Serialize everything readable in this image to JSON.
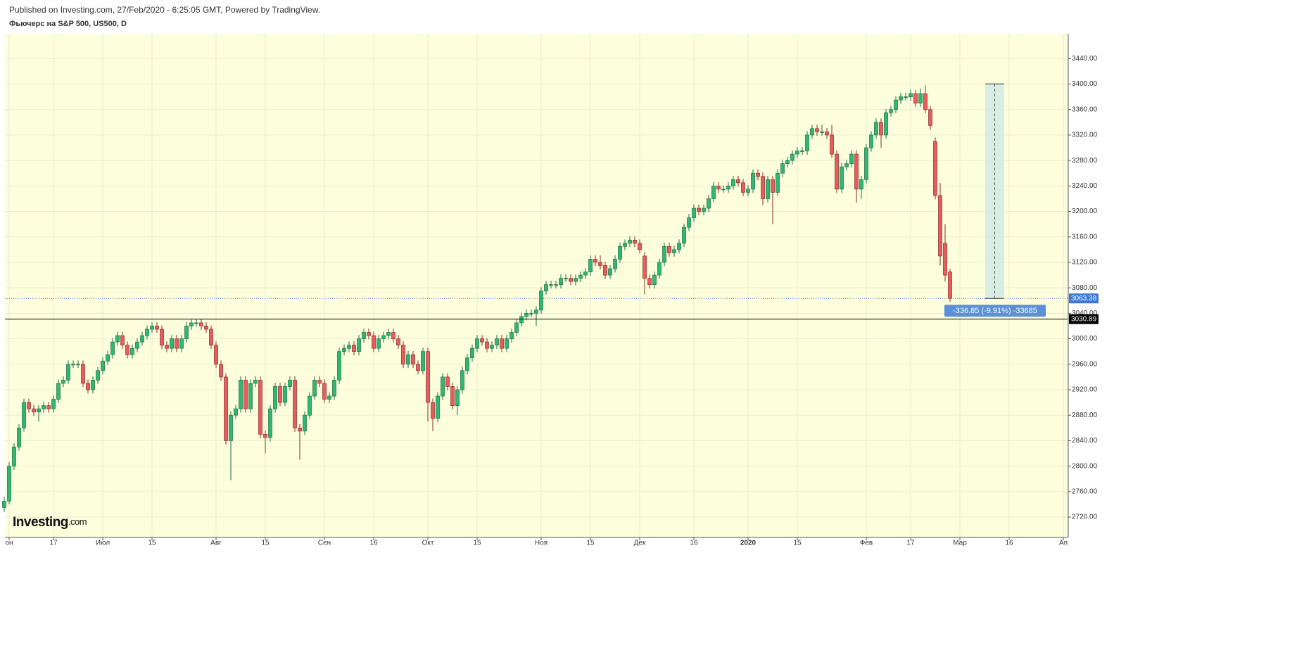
{
  "chart_data": {
    "type": "candlestick",
    "subtitle": "Published on Investing.com, 27/Feb/2020 - 6:25:05 GMT, Powered by TradingView.",
    "title": "Фьючерс на S&P 500, US500, D",
    "logo": {
      "name": "Investing",
      "suffix": ".com"
    },
    "up_color": "#2eb872",
    "down_color": "#e85c5c",
    "ylim": [
      2688,
      3479
    ],
    "yticks": [
      {
        "value": 2720,
        "label": "2720.00"
      },
      {
        "value": 2760,
        "label": "2760.00"
      },
      {
        "value": 2800,
        "label": "2800.00"
      },
      {
        "value": 2840,
        "label": "2840.00"
      },
      {
        "value": 2880,
        "label": "2880.00"
      },
      {
        "value": 2920,
        "label": "2920.00"
      },
      {
        "value": 2960,
        "label": "2960.00"
      },
      {
        "value": 3000,
        "label": "3000.00"
      },
      {
        "value": 3040,
        "label": "3040.00"
      },
      {
        "value": 3080,
        "label": "3080.00"
      },
      {
        "value": 3120,
        "label": "3120.00"
      },
      {
        "value": 3160,
        "label": "3160.00"
      },
      {
        "value": 3200,
        "label": "3200.00"
      },
      {
        "value": 3240,
        "label": "3240.00"
      },
      {
        "value": 3280,
        "label": "3280.00"
      },
      {
        "value": 3320,
        "label": "3320.00"
      },
      {
        "value": 3360,
        "label": "3360.00"
      },
      {
        "value": 3400,
        "label": "3400.00"
      },
      {
        "value": 3440,
        "label": "3440.00"
      }
    ],
    "grid": true,
    "last_price": 3063.38,
    "hline": 3030.89,
    "measure": {
      "range": [
        3400.23,
        3063.38
      ],
      "label": "-336.85 (-9.91%) -33685"
    },
    "categories": [
      null,
      "он",
      null,
      null,
      null,
      null,
      null,
      null,
      null,
      null,
      "17",
      null,
      null,
      null,
      null,
      null,
      null,
      null,
      null,
      null,
      "Июл",
      null,
      null,
      null,
      null,
      null,
      null,
      null,
      null,
      null,
      "15",
      null,
      null,
      null,
      null,
      null,
      null,
      null,
      null,
      null,
      null,
      null,
      null,
      "Авг",
      null,
      null,
      null,
      null,
      null,
      null,
      null,
      null,
      null,
      "15",
      null,
      null,
      null,
      null,
      null,
      null,
      null,
      null,
      null,
      null,
      null,
      "Сен",
      null,
      null,
      null,
      null,
      null,
      null,
      null,
      null,
      null,
      "16",
      null,
      null,
      null,
      null,
      null,
      null,
      null,
      null,
      null,
      null,
      "Окт",
      null,
      null,
      null,
      null,
      null,
      null,
      null,
      null,
      null,
      "15",
      null,
      null,
      null,
      null,
      null,
      null,
      null,
      null,
      null,
      null,
      null,
      null,
      "Ноя",
      null,
      null,
      null,
      null,
      null,
      null,
      null,
      null,
      null,
      "15",
      null,
      null,
      null,
      null,
      null,
      null,
      null,
      null,
      null,
      "Дек",
      null,
      null,
      null,
      null,
      null,
      null,
      null,
      null,
      null,
      null,
      "16",
      null,
      null,
      null,
      null,
      null,
      null,
      null,
      null,
      null,
      null,
      "2020",
      null,
      null,
      null,
      null,
      null,
      null,
      null,
      null,
      null,
      "15",
      null,
      null,
      null,
      null,
      null,
      null,
      null,
      null,
      null,
      null,
      null,
      null,
      null,
      "Фев",
      null,
      null,
      null,
      null,
      null,
      null,
      null,
      null,
      "17",
      null,
      null,
      null,
      null,
      null,
      null,
      null,
      null,
      null,
      "Мар",
      null,
      null,
      null,
      null,
      null,
      null,
      null,
      null,
      null,
      "16",
      null,
      null,
      null,
      null,
      null,
      null,
      null,
      null,
      null,
      null,
      "Ап"
    ],
    "ohlc": [
      [
        2735,
        2752,
        2728,
        2745
      ],
      [
        2745,
        2806,
        2740,
        2800
      ],
      [
        2800,
        2836,
        2794,
        2830
      ],
      [
        2830,
        2866,
        2824,
        2860
      ],
      [
        2860,
        2906,
        2854,
        2900
      ],
      [
        2900,
        2906,
        2884,
        2890
      ],
      [
        2890,
        2896,
        2879,
        2885
      ],
      [
        2885,
        2896,
        2870,
        2890
      ],
      [
        2890,
        2901,
        2884,
        2895
      ],
      [
        2895,
        2901,
        2884,
        2890
      ],
      [
        2890,
        2911,
        2884,
        2905
      ],
      [
        2905,
        2936,
        2899,
        2930
      ],
      [
        2930,
        2941,
        2924,
        2935
      ],
      [
        2935,
        2966,
        2929,
        2960
      ],
      [
        2960,
        2966,
        2954,
        2960
      ],
      [
        2960,
        2966,
        2954,
        2960
      ],
      [
        2960,
        2966,
        2924,
        2930
      ],
      [
        2930,
        2936,
        2914,
        2920
      ],
      [
        2920,
        2941,
        2914,
        2935
      ],
      [
        2935,
        2956,
        2929,
        2950
      ],
      [
        2950,
        2971,
        2944,
        2965
      ],
      [
        2965,
        2981,
        2959,
        2975
      ],
      [
        2975,
        3001,
        2969,
        2995
      ],
      [
        2995,
        3011,
        2989,
        3005
      ],
      [
        3005,
        3011,
        2984,
        2990
      ],
      [
        2990,
        2996,
        2969,
        2975
      ],
      [
        2975,
        2991,
        2969,
        2985
      ],
      [
        2985,
        3001,
        2979,
        2995
      ],
      [
        2995,
        3011,
        2989,
        3005
      ],
      [
        3005,
        3021,
        2999,
        3015
      ],
      [
        3015,
        3026,
        3009,
        3020
      ],
      [
        3020,
        3026,
        3009,
        3015
      ],
      [
        3015,
        3021,
        2984,
        2990
      ],
      [
        2990,
        2996,
        2979,
        2985
      ],
      [
        2985,
        3006,
        2979,
        3000
      ],
      [
        3000,
        3006,
        2979,
        2985
      ],
      [
        2985,
        3006,
        2979,
        3000
      ],
      [
        3000,
        3026,
        2994,
        3020
      ],
      [
        3020,
        3031,
        3014,
        3025
      ],
      [
        3025,
        3031,
        3019,
        3025
      ],
      [
        3025,
        3031,
        3014,
        3020
      ],
      [
        3020,
        3026,
        3009,
        3015
      ],
      [
        3015,
        3021,
        2984,
        2990
      ],
      [
        2990,
        2996,
        2954,
        2960
      ],
      [
        2960,
        2966,
        2934,
        2940
      ],
      [
        2940,
        2946,
        2834,
        2840
      ],
      [
        2840,
        2886,
        2778,
        2880
      ],
      [
        2880,
        2896,
        2874,
        2890
      ],
      [
        2890,
        2941,
        2884,
        2935
      ],
      [
        2935,
        2941,
        2884,
        2890
      ],
      [
        2890,
        2936,
        2884,
        2930
      ],
      [
        2930,
        2941,
        2924,
        2935
      ],
      [
        2935,
        2941,
        2844,
        2850
      ],
      [
        2850,
        2856,
        2820,
        2845
      ],
      [
        2845,
        2896,
        2839,
        2890
      ],
      [
        2890,
        2931,
        2884,
        2925
      ],
      [
        2925,
        2931,
        2894,
        2900
      ],
      [
        2900,
        2931,
        2894,
        2925
      ],
      [
        2925,
        2941,
        2919,
        2935
      ],
      [
        2935,
        2941,
        2854,
        2860
      ],
      [
        2860,
        2866,
        2810,
        2855
      ],
      [
        2855,
        2886,
        2849,
        2880
      ],
      [
        2880,
        2916,
        2874,
        2910
      ],
      [
        2910,
        2941,
        2904,
        2935
      ],
      [
        2935,
        2941,
        2924,
        2930
      ],
      [
        2930,
        2936,
        2899,
        2905
      ],
      [
        2905,
        2916,
        2899,
        2910
      ],
      [
        2910,
        2941,
        2904,
        2935
      ],
      [
        2935,
        2986,
        2929,
        2980
      ],
      [
        2980,
        2991,
        2974,
        2985
      ],
      [
        2985,
        2996,
        2979,
        2990
      ],
      [
        2990,
        2996,
        2974,
        2980
      ],
      [
        2980,
        3006,
        2974,
        3000
      ],
      [
        3000,
        3016,
        2994,
        3010
      ],
      [
        3010,
        3016,
        2999,
        3005
      ],
      [
        3005,
        3011,
        2979,
        2985
      ],
      [
        2985,
        3006,
        2979,
        3000
      ],
      [
        3000,
        3011,
        2994,
        3005
      ],
      [
        3005,
        3016,
        2999,
        3010
      ],
      [
        3010,
        3016,
        2994,
        3000
      ],
      [
        3000,
        3006,
        2984,
        2990
      ],
      [
        2990,
        2996,
        2954,
        2960
      ],
      [
        2960,
        2981,
        2954,
        2975
      ],
      [
        2975,
        2981,
        2954,
        2960
      ],
      [
        2960,
        2966,
        2944,
        2950
      ],
      [
        2950,
        2986,
        2944,
        2980
      ],
      [
        2980,
        2986,
        2870,
        2900
      ],
      [
        2900,
        2906,
        2855,
        2875
      ],
      [
        2875,
        2916,
        2869,
        2910
      ],
      [
        2910,
        2946,
        2904,
        2940
      ],
      [
        2940,
        2946,
        2919,
        2925
      ],
      [
        2925,
        2931,
        2889,
        2895
      ],
      [
        2895,
        2926,
        2880,
        2920
      ],
      [
        2920,
        2956,
        2914,
        2950
      ],
      [
        2950,
        2976,
        2944,
        2970
      ],
      [
        2970,
        2991,
        2964,
        2985
      ],
      [
        2985,
        3006,
        2979,
        3000
      ],
      [
        3000,
        3006,
        2989,
        2995
      ],
      [
        2995,
        3001,
        2979,
        2985
      ],
      [
        2985,
        2996,
        2979,
        2990
      ],
      [
        2990,
        3006,
        2984,
        3000
      ],
      [
        3000,
        3006,
        2979,
        2985
      ],
      [
        2985,
        3006,
        2979,
        3000
      ],
      [
        3000,
        3016,
        2994,
        3010
      ],
      [
        3010,
        3031,
        3004,
        3025
      ],
      [
        3025,
        3041,
        3019,
        3035
      ],
      [
        3035,
        3046,
        3029,
        3040
      ],
      [
        3040,
        3046,
        3034,
        3040
      ],
      [
        3040,
        3051,
        3020,
        3045
      ],
      [
        3045,
        3081,
        3039,
        3075
      ],
      [
        3075,
        3091,
        3069,
        3085
      ],
      [
        3085,
        3091,
        3079,
        3085
      ],
      [
        3085,
        3091,
        3079,
        3085
      ],
      [
        3085,
        3101,
        3079,
        3095
      ],
      [
        3095,
        3101,
        3089,
        3095
      ],
      [
        3095,
        3101,
        3084,
        3090
      ],
      [
        3090,
        3101,
        3084,
        3095
      ],
      [
        3095,
        3106,
        3089,
        3100
      ],
      [
        3100,
        3111,
        3094,
        3105
      ],
      [
        3105,
        3131,
        3099,
        3125
      ],
      [
        3125,
        3131,
        3114,
        3120
      ],
      [
        3120,
        3131,
        3109,
        3115
      ],
      [
        3115,
        3121,
        3094,
        3100
      ],
      [
        3100,
        3116,
        3094,
        3110
      ],
      [
        3110,
        3131,
        3104,
        3125
      ],
      [
        3125,
        3151,
        3119,
        3145
      ],
      [
        3145,
        3156,
        3139,
        3150
      ],
      [
        3150,
        3161,
        3144,
        3155
      ],
      [
        3155,
        3161,
        3144,
        3150
      ],
      [
        3150,
        3156,
        3134,
        3140
      ],
      [
        3130,
        3136,
        3070,
        3095
      ],
      [
        3095,
        3101,
        3079,
        3085
      ],
      [
        3085,
        3106,
        3079,
        3100
      ],
      [
        3100,
        3126,
        3094,
        3120
      ],
      [
        3120,
        3151,
        3114,
        3145
      ],
      [
        3145,
        3151,
        3129,
        3135
      ],
      [
        3135,
        3146,
        3129,
        3140
      ],
      [
        3140,
        3156,
        3134,
        3150
      ],
      [
        3150,
        3181,
        3144,
        3175
      ],
      [
        3175,
        3196,
        3169,
        3190
      ],
      [
        3190,
        3211,
        3184,
        3205
      ],
      [
        3205,
        3211,
        3194,
        3200
      ],
      [
        3200,
        3211,
        3194,
        3205
      ],
      [
        3205,
        3226,
        3199,
        3220
      ],
      [
        3220,
        3246,
        3214,
        3240
      ],
      [
        3240,
        3246,
        3229,
        3235
      ],
      [
        3235,
        3241,
        3229,
        3235
      ],
      [
        3235,
        3246,
        3229,
        3240
      ],
      [
        3240,
        3256,
        3234,
        3250
      ],
      [
        3250,
        3256,
        3239,
        3245
      ],
      [
        3245,
        3251,
        3224,
        3230
      ],
      [
        3230,
        3241,
        3224,
        3235
      ],
      [
        3235,
        3266,
        3229,
        3260
      ],
      [
        3260,
        3266,
        3249,
        3255
      ],
      [
        3255,
        3261,
        3210,
        3220
      ],
      [
        3220,
        3256,
        3214,
        3250
      ],
      [
        3250,
        3256,
        3180,
        3230
      ],
      [
        3230,
        3266,
        3224,
        3260
      ],
      [
        3260,
        3281,
        3254,
        3275
      ],
      [
        3275,
        3286,
        3269,
        3280
      ],
      [
        3280,
        3296,
        3274,
        3290
      ],
      [
        3290,
        3301,
        3284,
        3295
      ],
      [
        3295,
        3301,
        3289,
        3295
      ],
      [
        3295,
        3326,
        3289,
        3320
      ],
      [
        3320,
        3336,
        3314,
        3330
      ],
      [
        3330,
        3336,
        3319,
        3325
      ],
      [
        3325,
        3336,
        3319,
        3325
      ],
      [
        3325,
        3331,
        3314,
        3320
      ],
      [
        3320,
        3336,
        3284,
        3290
      ],
      [
        3290,
        3296,
        3229,
        3235
      ],
      [
        3235,
        3276,
        3229,
        3270
      ],
      [
        3270,
        3281,
        3264,
        3275
      ],
      [
        3275,
        3296,
        3269,
        3290
      ],
      [
        3290,
        3296,
        3214,
        3235
      ],
      [
        3235,
        3256,
        3220,
        3250
      ],
      [
        3250,
        3306,
        3244,
        3300
      ],
      [
        3300,
        3326,
        3294,
        3320
      ],
      [
        3320,
        3346,
        3314,
        3340
      ],
      [
        3340,
        3346,
        3300,
        3320
      ],
      [
        3320,
        3361,
        3314,
        3355
      ],
      [
        3355,
        3366,
        3349,
        3360
      ],
      [
        3360,
        3381,
        3354,
        3375
      ],
      [
        3375,
        3386,
        3369,
        3380
      ],
      [
        3380,
        3386,
        3374,
        3380
      ],
      [
        3380,
        3391,
        3374,
        3385
      ],
      [
        3385,
        3391,
        3364,
        3370
      ],
      [
        3370,
        3393,
        3364,
        3385
      ],
      [
        3385,
        3398,
        3354,
        3360
      ],
      [
        3360,
        3366,
        3328,
        3335
      ],
      [
        3310,
        3316,
        3219,
        3225
      ],
      [
        3225,
        3245,
        3115,
        3130
      ],
      [
        3150,
        3180,
        3090,
        3100
      ],
      [
        3105,
        3110,
        3058,
        3063.38
      ],
      null,
      null,
      null,
      null,
      null,
      null,
      null,
      null,
      null,
      null,
      null,
      null,
      null,
      null,
      null,
      null,
      null,
      null,
      null,
      null,
      null,
      null,
      null
    ]
  }
}
